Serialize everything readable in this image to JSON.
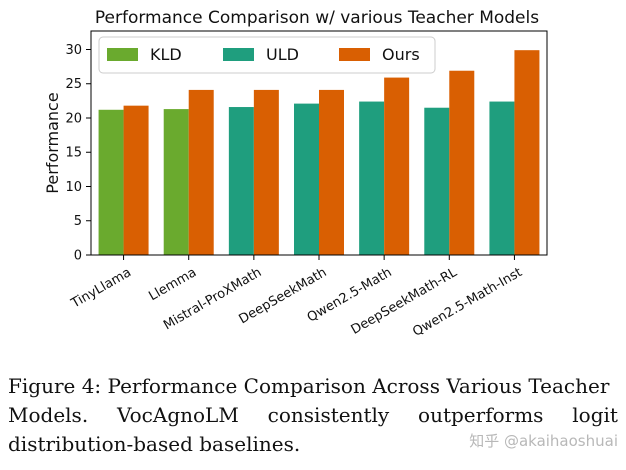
{
  "chart_data": {
    "type": "bar",
    "title": "Performance Comparison w/ various Teacher Models",
    "xlabel": "",
    "ylabel": "Performance",
    "ylim": [
      0,
      32.7
    ],
    "yticks": [
      0,
      5,
      10,
      15,
      20,
      25,
      30
    ],
    "categories": [
      "TinyLlama",
      "Llemma",
      "Mistral-ProXMath",
      "DeepSeekMath",
      "Qwen2.5-Math",
      "DeepSeekMath-RL",
      "Qwen2.5-Math-Inst"
    ],
    "series": [
      {
        "name": "KLD",
        "color": "#6aaa2e",
        "values": [
          21.2,
          21.3,
          null,
          null,
          null,
          null,
          null
        ]
      },
      {
        "name": "ULD",
        "color": "#1f9e7e",
        "values": [
          null,
          null,
          21.6,
          22.1,
          22.4,
          21.5,
          22.4
        ]
      },
      {
        "name": "Ours",
        "color": "#d95f02",
        "values": [
          21.8,
          24.1,
          24.1,
          24.1,
          25.9,
          26.9,
          29.9
        ]
      }
    ],
    "grid": false,
    "legend_position": "top-left"
  },
  "caption": {
    "lines": [
      "Figure 4: Performance Comparison Across Various Teacher",
      "Models.  VocAgnoLM consistently outperforms logit",
      "distribution-based baselines."
    ]
  },
  "watermark": "知乎 @akaihaoshuai"
}
